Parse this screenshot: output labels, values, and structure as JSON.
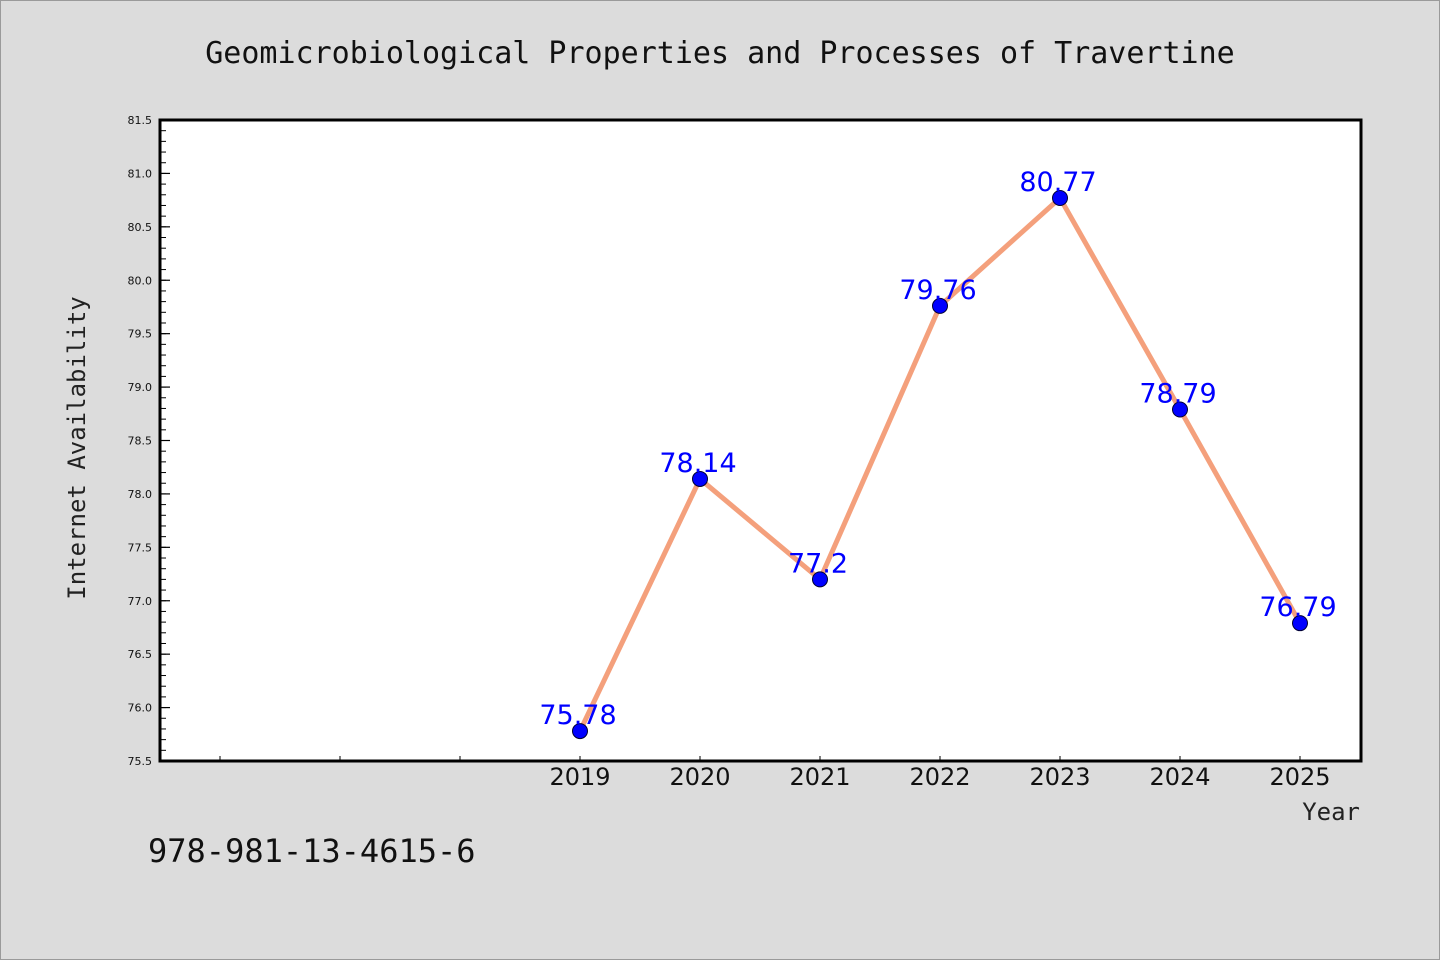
{
  "colors": {
    "background": "#dcdcdc",
    "plot_background": "#ffffff",
    "line": "#f4a07c",
    "marker": "#0000ff",
    "data_label": "#0000ff"
  },
  "footer": {
    "identifier": "978-981-13-4615-6"
  },
  "chart_data": {
    "type": "line",
    "title": "Geomicrobiological Properties and Processes of Travertine",
    "xlabel": "Year",
    "ylabel": "Internet Availability",
    "categories": [
      "2019",
      "2020",
      "2021",
      "2022",
      "2023",
      "2024",
      "2025"
    ],
    "series": [
      {
        "values": [
          75.78,
          78.14,
          77.2,
          79.76,
          80.77,
          78.79,
          76.79
        ]
      }
    ],
    "data_labels": [
      "75.78",
      "78.14",
      "77.2",
      "79.76",
      "80.77",
      "78.79",
      "76.79"
    ],
    "ylim": [
      75.5,
      81.5
    ],
    "yticks": [
      75.5,
      76.0,
      76.5,
      77.0,
      77.5,
      78.0,
      78.5,
      79.0,
      79.5,
      80.0,
      80.5,
      81.0,
      81.5
    ],
    "ytick_labels": [
      "75.5",
      "76.0",
      "76.5",
      "77.0",
      "77.5",
      "78.0",
      "78.5",
      "79.0",
      "79.5",
      "80.0",
      "80.5",
      "81.0",
      "81.5"
    ],
    "x_slots": 10,
    "x_first_category_slot": 3,
    "grid": false,
    "legend": "none"
  }
}
